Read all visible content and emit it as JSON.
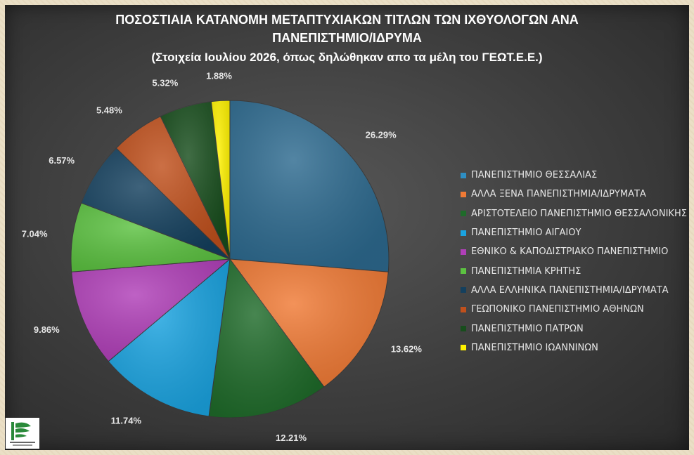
{
  "title": {
    "line1": "ΠΟΣΟΣΤΙΑΙΑ ΚΑΤΑΝΟΜΗ ΜΕΤΑΠΤΥΧΙΑΚΩΝ ΤΙΤΛΩΝ ΤΩΝ ΙΧΘΥΟΛΟΓΩΝ ΑΝΑ",
    "line2": "ΠΑΝΕΠΙΣΤΗΜΙΟ/ΙΔΡΥΜΑ",
    "subtitle": "(Στοιχεία Ιουλίου 2026, όπως δηλώθηκαν  απο τα μέλη του ΓΕΩΤ.Ε.Ε.)"
  },
  "logo": {
    "name": "ΓΕΩΤ.Ε.Ε. logo",
    "caption": "ΓΕΩΤΕΧΝΙΚΟ ΕΠΙΜΕΛΗΤΗΡΙΟ ΕΛΛΑΔΑΣ"
  },
  "chart_data": {
    "type": "pie",
    "start_angle": "12 o'clock, clockwise",
    "legend_position": "right",
    "categories": [
      "ΠΑΝΕΠΙΣΤΗΜΙΟ ΘΕΣΣΑΛΙΑΣ",
      "ΑΛΛΑ ΞΕΝΑ ΠΑΝΕΠΙΣΤΗΜΙΑ/ΙΔΡΥΜΑΤΑ",
      "ΑΡΙΣΤΟΤΕΛΕΙΟ ΠΑΝΕΠΙΣΤΗΜΙΟ ΘΕΣΣΑΛΟΝΙΚΗΣ",
      "ΠΑΝΕΠΙΣΤΗΜΙΟ ΑΙΓΑΙΟΥ",
      "ΕΘΝΙΚΟ & ΚΑΠΟΔΙΣΤΡΙΑΚΟ ΠΑΝΕΠΙΣΤΗΜΙΟ",
      "ΠΑΝΕΠΙΣΤΗΜΙΑ ΚΡΗΤΗΣ",
      "ΑΛΛΑ ΕΛΛΗΝΙΚΑ ΠΑΝΕΠΙΣΤΗΜΙΑ/ΙΔΡΥΜΑΤΑ",
      "ΓΕΩΠΟΝΙΚΟ ΠΑΝΕΠΙΣΤΗΜΙΟ ΑΘΗΝΩΝ",
      "ΠΑΝΕΠΙΣΤΗΜΙΟ ΠΑΤΡΩΝ",
      "ΠΑΝΕΠΙΣΤΗΜΙΟ ΙΩΑΝΝΙΝΩΝ"
    ],
    "values": [
      26.29,
      13.62,
      12.21,
      11.74,
      9.86,
      7.04,
      6.57,
      5.48,
      5.32,
      1.88
    ],
    "labels": [
      "26.29%",
      "13.62%",
      "12.21%",
      "11.74%",
      "9.86%",
      "7.04%",
      "6.57%",
      "5.48%",
      "5.32%",
      "1.88%"
    ],
    "colors": [
      "#2d6a8f",
      "#f07a35",
      "#1f6b2a",
      "#1aa3e0",
      "#b03fb8",
      "#5cc241",
      "#14405e",
      "#c0501c",
      "#174d1c",
      "#fff200"
    ],
    "legend_swatch_colors": [
      "#2e8fc4",
      "#f07a35",
      "#1f6b2a",
      "#1aa3e0",
      "#b03fb8",
      "#5cc241",
      "#14405e",
      "#c0501c",
      "#174d1c",
      "#fff200"
    ]
  }
}
